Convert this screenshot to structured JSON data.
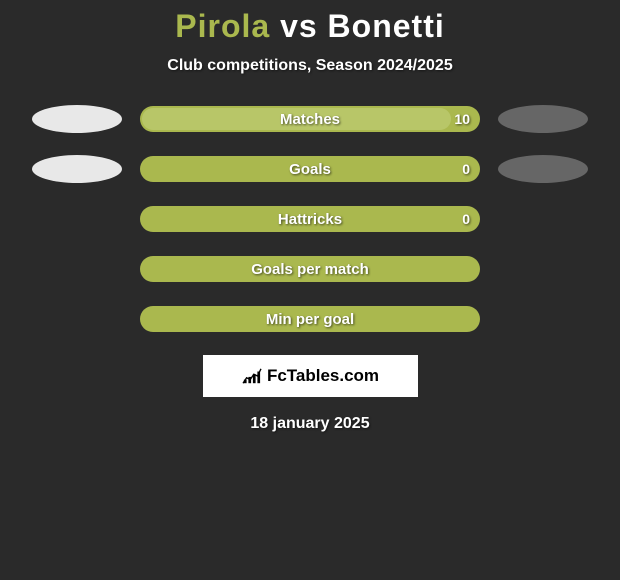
{
  "title": {
    "player1": "Pirola",
    "vs": "vs",
    "player2": "Bonetti",
    "player1_color": "#aab84e",
    "vs_color": "#ffffff",
    "player2_color": "#ffffff",
    "fontsize": 32
  },
  "subtitle": "Club competitions, Season 2024/2025",
  "background_color": "#2a2a2a",
  "bar_color": "#aab84e",
  "bar_fill_color": "#b8c668",
  "ellipse_colors": {
    "light": "#e8e8e8",
    "dark": "#666666"
  },
  "stats": [
    {
      "label": "Matches",
      "value": "10",
      "show_left_ellipse": true,
      "left_ellipse_style": "light",
      "show_right_ellipse": true,
      "right_ellipse_style": "dark",
      "fill_percent": 92
    },
    {
      "label": "Goals",
      "value": "0",
      "show_left_ellipse": true,
      "left_ellipse_style": "light",
      "show_right_ellipse": true,
      "right_ellipse_style": "dark",
      "fill_percent": 0
    },
    {
      "label": "Hattricks",
      "value": "0",
      "show_left_ellipse": false,
      "show_right_ellipse": false,
      "fill_percent": 0
    },
    {
      "label": "Goals per match",
      "value": "",
      "show_left_ellipse": false,
      "show_right_ellipse": false,
      "fill_percent": 0
    },
    {
      "label": "Min per goal",
      "value": "",
      "show_left_ellipse": false,
      "show_right_ellipse": false,
      "fill_percent": 0
    }
  ],
  "logo": {
    "text": "FcTables.com",
    "background": "#ffffff",
    "text_color": "#000000"
  },
  "date": "18 january 2025"
}
